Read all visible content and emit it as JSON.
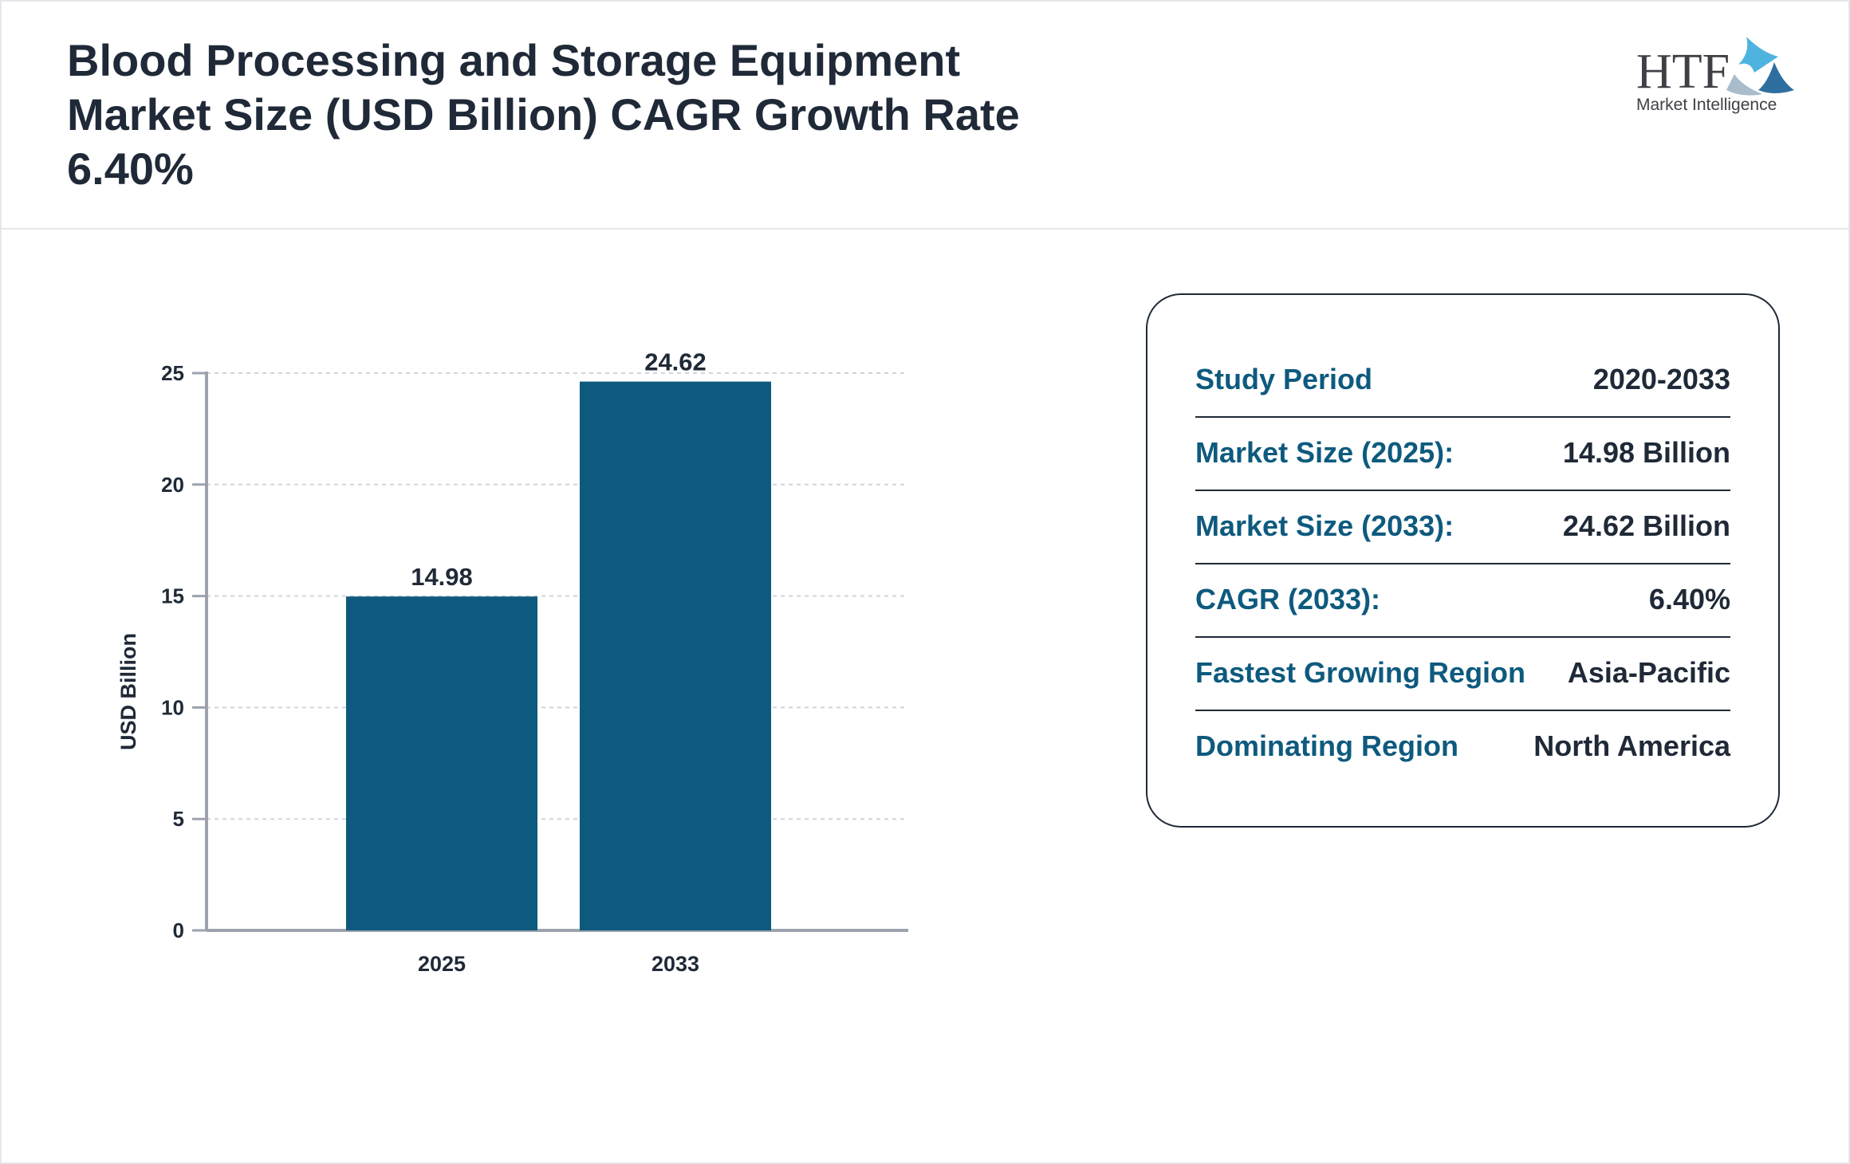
{
  "header": {
    "title": "Blood Processing and Storage Equipment Market Size (USD Billion) CAGR Growth Rate 6.40%",
    "logo_text": "HTF",
    "logo_subtext": "Market Intelligence"
  },
  "chart_data": {
    "type": "bar",
    "categories": [
      "2025",
      "2033"
    ],
    "values": [
      14.98,
      24.62
    ],
    "data_labels": [
      "14.98",
      "24.62"
    ],
    "xlabel": "",
    "ylabel": "USD Billion",
    "ylim": [
      0,
      25
    ],
    "yticks": [
      "0",
      "5",
      "10",
      "15",
      "20",
      "25"
    ],
    "grid": true,
    "bar_color": "#0e5a7e"
  },
  "summary": [
    {
      "label": "Study Period",
      "value": "2020-2033"
    },
    {
      "label": "Market Size (2025):",
      "value": "14.98 Billion"
    },
    {
      "label": "Market Size (2033):",
      "value": "24.62 Billion"
    },
    {
      "label": "CAGR (2033):",
      "value": "6.40%"
    },
    {
      "label": "Fastest Growing Region",
      "value": "Asia-Pacific"
    },
    {
      "label": "Dominating Region",
      "value": "North America"
    }
  ]
}
